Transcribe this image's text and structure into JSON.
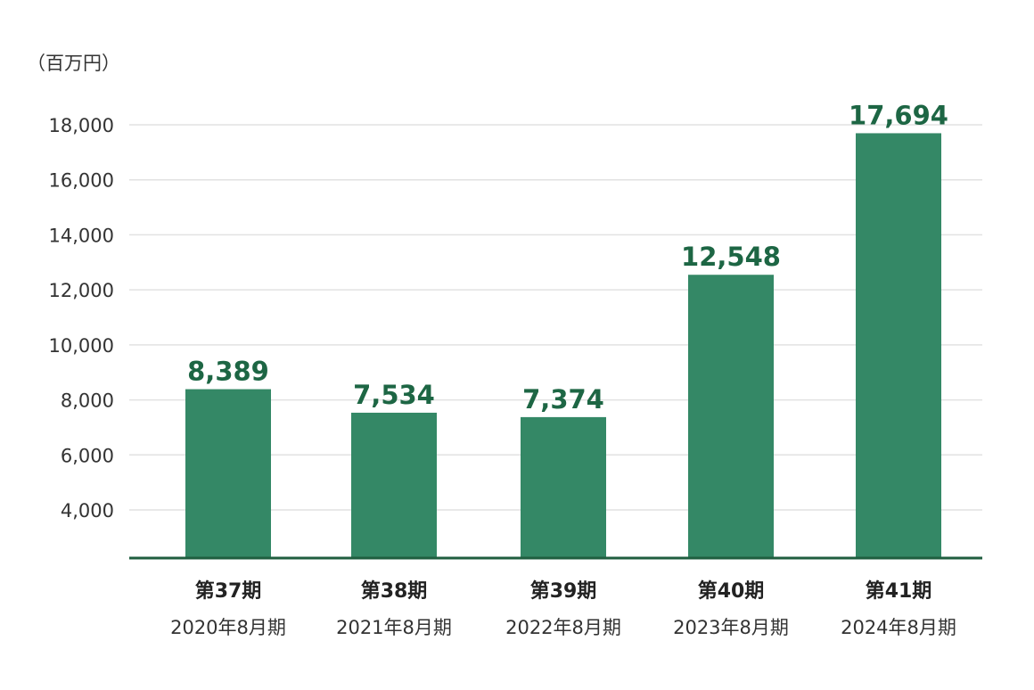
{
  "chart_data": {
    "type": "bar",
    "unit_label": "（百万円）",
    "categories": [
      "第37期",
      "第38期",
      "第39期",
      "第40期",
      "第41期"
    ],
    "sub_categories": [
      "2020年8月期",
      "2021年8月期",
      "2022年8月期",
      "2023年8月期",
      "2024年8月期"
    ],
    "values": [
      8389,
      7534,
      7374,
      12548,
      17694
    ],
    "data_labels": [
      "8,389",
      "7,534",
      "7,374",
      "12,548",
      "17,694"
    ],
    "yticks": [
      4000,
      6000,
      8000,
      10000,
      12000,
      14000,
      16000,
      18000
    ],
    "ytick_labels": [
      "4,000",
      "6,000",
      "8,000",
      "10,000",
      "12,000",
      "14,000",
      "16,000",
      "18,000"
    ],
    "ylim": [
      2500,
      18000
    ],
    "grid": true,
    "colors": {
      "bar": "#348866",
      "data_label": "#1d6644",
      "baseline": "#1f5e3f",
      "grid": "#e2e2e2"
    }
  }
}
